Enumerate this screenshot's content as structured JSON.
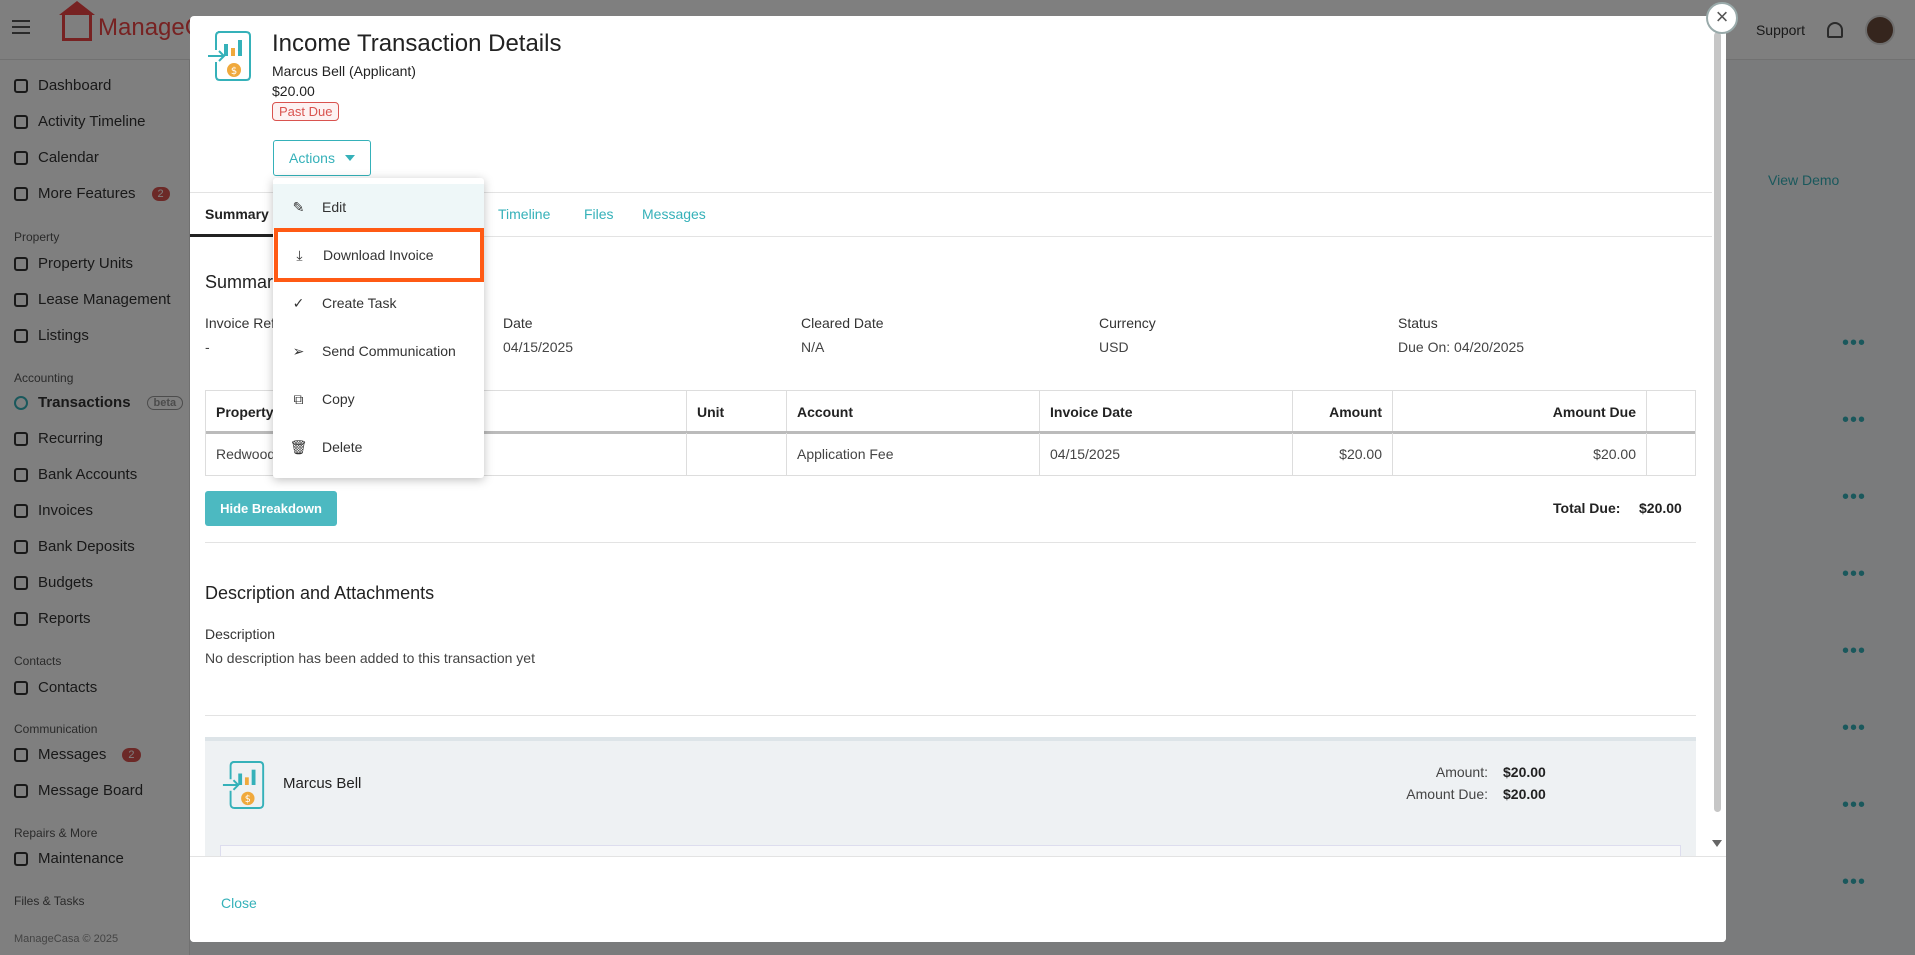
{
  "app": {
    "logo_text": "ManageC",
    "support_label": "Support",
    "footer": "ManageCasa © 2025"
  },
  "sidebar": {
    "items": [
      {
        "label": "Dashboard"
      },
      {
        "label": "Activity Timeline"
      },
      {
        "label": "Calendar"
      },
      {
        "label": "More Features",
        "badge": "2"
      },
      {
        "label": "Property Units"
      },
      {
        "label": "Lease Management"
      },
      {
        "label": "Listings"
      },
      {
        "label": "Transactions",
        "badge": "beta"
      },
      {
        "label": "Recurring"
      },
      {
        "label": "Bank Accounts"
      },
      {
        "label": "Invoices"
      },
      {
        "label": "Bank Deposits"
      },
      {
        "label": "Budgets"
      },
      {
        "label": "Reports"
      },
      {
        "label": "Contacts"
      },
      {
        "label": "Messages",
        "badge": "2"
      },
      {
        "label": "Message Board"
      },
      {
        "label": "Maintenance"
      }
    ],
    "sections": [
      "Property",
      "Accounting",
      "Contacts",
      "Communication",
      "Repairs & More",
      "Files & Tasks"
    ]
  },
  "background": {
    "view_demo": "View Demo"
  },
  "modal": {
    "title": "Income Transaction Details",
    "contact": "Marcus Bell (Applicant)",
    "amount": "$20.00",
    "status_badge": "Past Due",
    "actions_label": "Actions",
    "tabs": [
      "Summary",
      "Timeline",
      "Files",
      "Messages"
    ],
    "summary": {
      "heading": "Summar",
      "fields": [
        {
          "label": "Invoice Ref",
          "value": "-"
        },
        {
          "label": "Date",
          "value": "04/15/2025"
        },
        {
          "label": "Cleared Date",
          "value": "N/A"
        },
        {
          "label": "Currency",
          "value": "USD"
        },
        {
          "label": "Status",
          "value": "Due On: 04/20/2025"
        }
      ]
    },
    "table": {
      "headers": [
        "Property",
        "Unit",
        "Account",
        "Invoice Date",
        "Amount",
        "Amount Due"
      ],
      "rows": [
        {
          "property": "Redwood",
          "unit": "",
          "account": "Application Fee",
          "invoice_date": "04/15/2025",
          "amount": "$20.00",
          "amount_due": "$20.00"
        }
      ]
    },
    "hide_breakdown": "Hide Breakdown",
    "total_due_label": "Total Due:",
    "total_due_value": "$20.00",
    "description": {
      "heading": "Description and Attachments",
      "label": "Description",
      "text": "No description has been added to this transaction yet"
    },
    "card": {
      "name": "Marcus Bell",
      "amount_label": "Amount:",
      "amount_value": "$20.00",
      "amount_due_label": "Amount Due:",
      "amount_due_value": "$20.00"
    },
    "close_label": "Close",
    "close_x": "×"
  },
  "menu": {
    "items": [
      {
        "label": "Edit",
        "icon": "pencil-icon"
      },
      {
        "label": "Download Invoice",
        "icon": "download-icon"
      },
      {
        "label": "Create Task",
        "icon": "check-icon"
      },
      {
        "label": "Send Communication",
        "icon": "send-icon"
      },
      {
        "label": "Copy",
        "icon": "copy-icon"
      },
      {
        "label": "Delete",
        "icon": "trash-icon"
      }
    ],
    "highlight_color": "#ff5a14"
  },
  "colors": {
    "accent": "#35b1b9",
    "danger": "#d9534f"
  }
}
